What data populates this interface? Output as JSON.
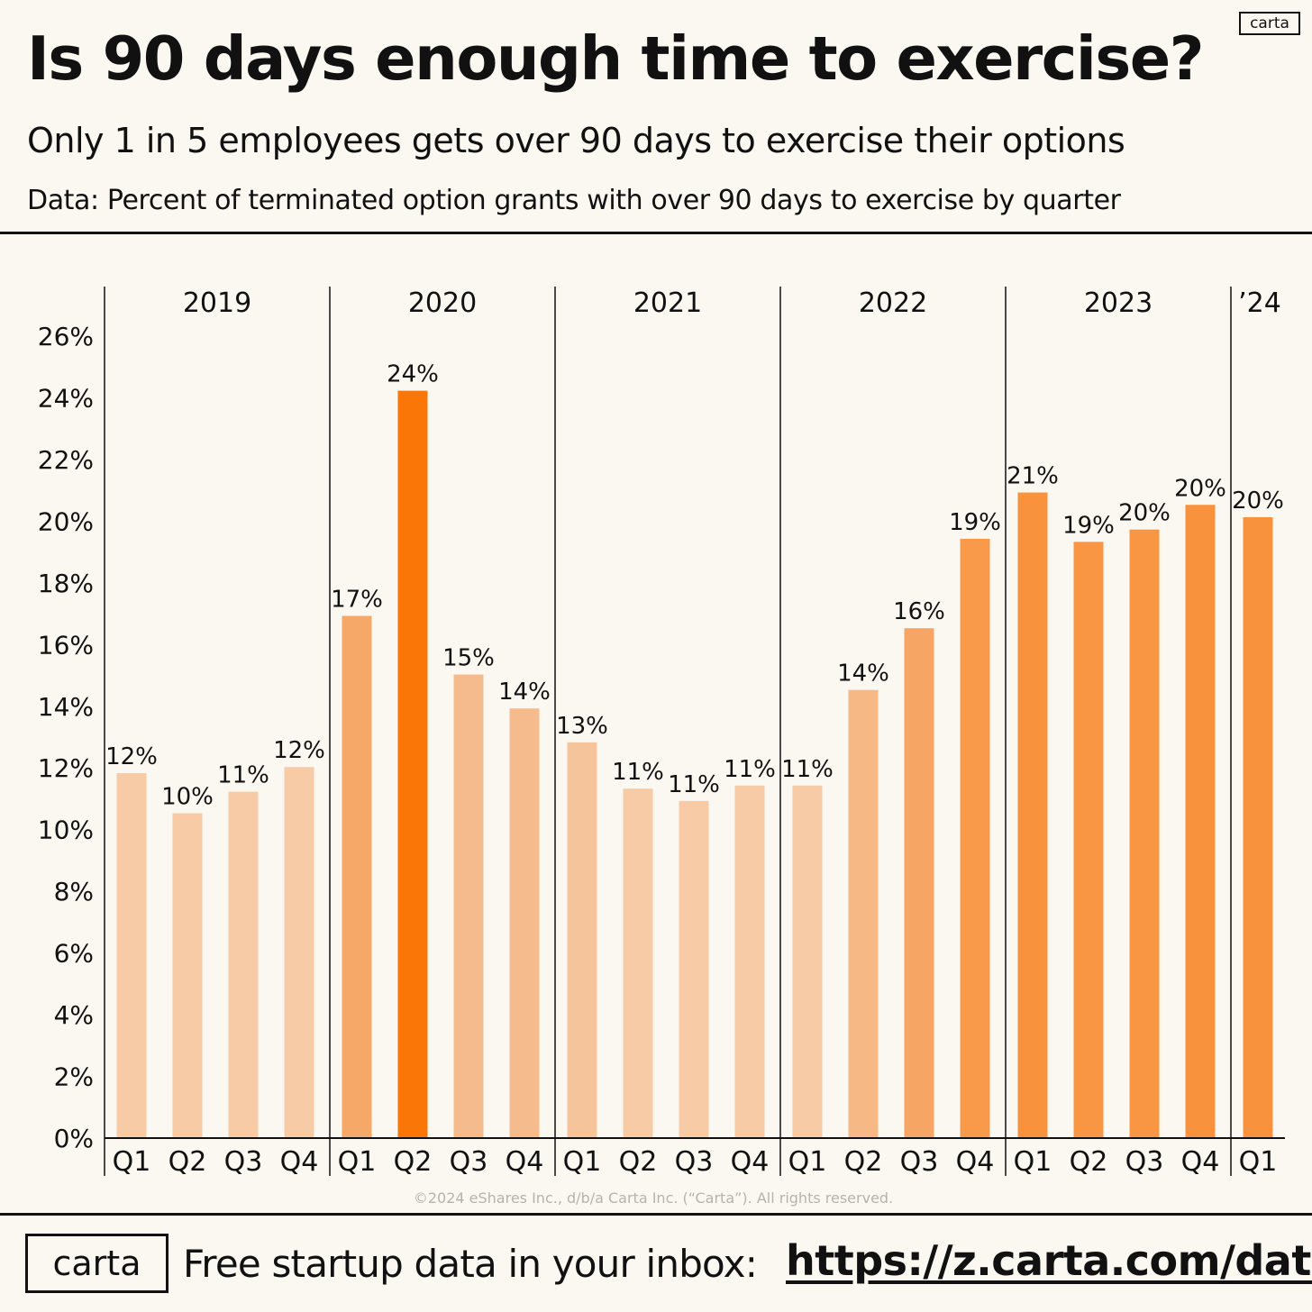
{
  "header": {
    "logo_small": "carta",
    "title": "Is 90 days enough time to exercise?",
    "subtitle": "Only 1 in 5 employees gets over 90 days to exercise their options",
    "data_note": "Data: Percent of terminated option grants with over 90 days to exercise by quarter"
  },
  "footer": {
    "copyright": "©2024 eShares Inc., d/b/a Carta Inc. (“Carta”). All rights reserved.",
    "logo_big": "carta",
    "cta": "Free startup data in your inbox:",
    "url": "https://z.carta.com/data"
  },
  "chart_data": {
    "type": "bar",
    "title": "Is 90 days enough time to exercise?",
    "ylabel": "",
    "xlabel": "",
    "ylim": [
      0,
      26
    ],
    "yticks": [
      "0%",
      "2%",
      "4%",
      "6%",
      "8%",
      "10%",
      "12%",
      "14%",
      "16%",
      "18%",
      "20%",
      "22%",
      "24%",
      "26%"
    ],
    "ytick_values": [
      0,
      2,
      4,
      6,
      8,
      10,
      12,
      14,
      16,
      18,
      20,
      22,
      24,
      26
    ],
    "groups": [
      "2019",
      "2020",
      "2021",
      "2022",
      "2023",
      "’24"
    ],
    "categories": [
      "Q1",
      "Q2",
      "Q3",
      "Q4",
      "Q1",
      "Q2",
      "Q3",
      "Q4",
      "Q1",
      "Q2",
      "Q3",
      "Q4",
      "Q1",
      "Q2",
      "Q3",
      "Q4",
      "Q1",
      "Q2",
      "Q3",
      "Q4",
      "Q1"
    ],
    "category_groups": [
      0,
      0,
      0,
      0,
      1,
      1,
      1,
      1,
      2,
      2,
      2,
      2,
      3,
      3,
      3,
      3,
      4,
      4,
      4,
      4,
      5
    ],
    "values": [
      11.8,
      10.5,
      11.2,
      12.0,
      16.9,
      24.2,
      15.0,
      13.9,
      12.8,
      11.3,
      10.9,
      11.4,
      11.4,
      14.5,
      16.5,
      19.4,
      20.9,
      19.3,
      19.7,
      20.5,
      20.1
    ],
    "data_labels": [
      "12%",
      "10%",
      "11%",
      "12%",
      "17%",
      "24%",
      "15%",
      "14%",
      "13%",
      "11%",
      "11%",
      "11%",
      "11%",
      "14%",
      "16%",
      "19%",
      "21%",
      "19%",
      "20%",
      "20%",
      "20%"
    ],
    "bar_colors": [
      "#f6cba6",
      "#f6cba6",
      "#f6cba6",
      "#f6cba6",
      "#f5a867",
      "#fa7607",
      "#f6bb8c",
      "#f6bb8c",
      "#f6c49b",
      "#f6cba6",
      "#f6cba6",
      "#f6cba6",
      "#f6cba6",
      "#f6b885",
      "#f6a564",
      "#f89a4a",
      "#f8923c",
      "#f89644",
      "#f89644",
      "#f8923c",
      "#f8923c"
    ],
    "grid": false
  }
}
